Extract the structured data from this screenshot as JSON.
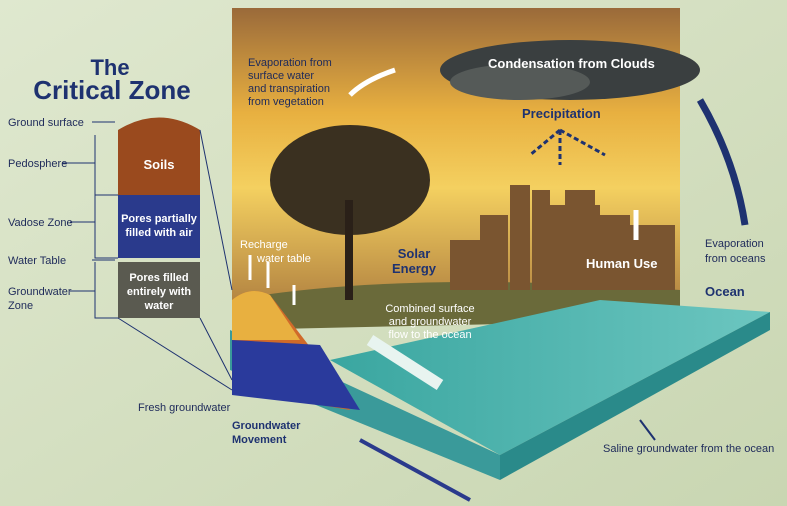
{
  "title": [
    "The",
    "Critical Zone"
  ],
  "left_labels": {
    "ground_surface": "Ground surface",
    "pedosphere": "Pedosphere",
    "vadose_zone": "Vadose Zone",
    "water_table": "Water Table",
    "groundwater_zone": [
      "Groundwater",
      "Zone"
    ]
  },
  "column": {
    "soils": "Soils",
    "vadose": [
      "Pores partially",
      "filled with air"
    ],
    "saturated": [
      "Pores filled",
      "entirely with",
      "water"
    ]
  },
  "scene": {
    "evaporation_land": [
      "Evaporation from",
      "surface water",
      "and transpiration",
      "from vegetation"
    ],
    "condensation": "Condensation from Clouds",
    "precipitation": "Precipitation",
    "recharge": [
      "Recharge",
      "water table"
    ],
    "solar": [
      "Solar",
      "Energy"
    ],
    "human_use": "Human Use",
    "evaporation_ocean": [
      "Evaporation",
      "from oceans"
    ],
    "ocean": "Ocean",
    "combined_flow": [
      "Combined surface",
      "and groundwater",
      "flow to the ocean"
    ],
    "fresh_groundwater": "Fresh groundwater",
    "groundwater_movement": [
      "Groundwater",
      "Movement"
    ],
    "saline_groundwater": "Saline groundwater from the ocean"
  }
}
